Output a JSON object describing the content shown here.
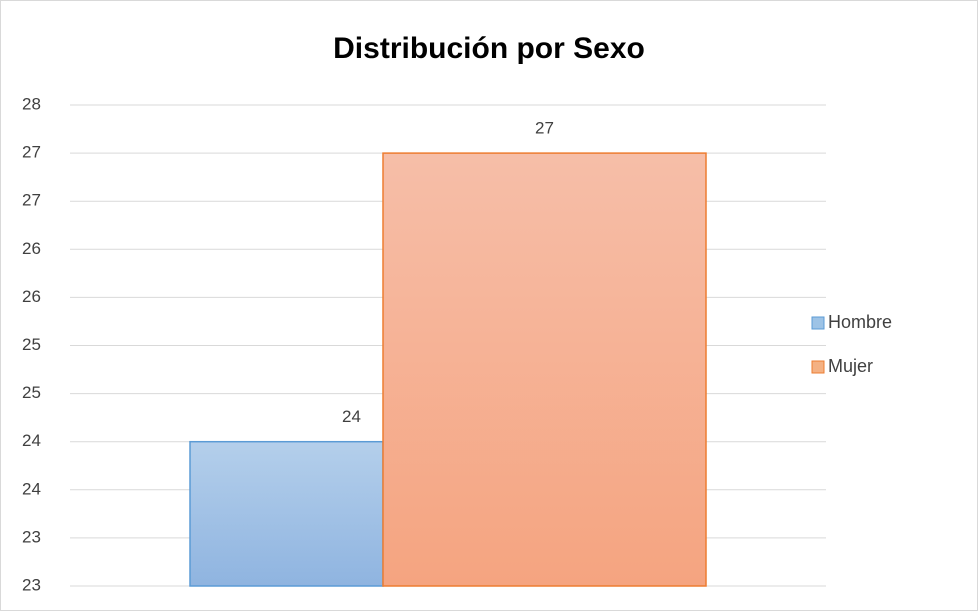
{
  "chart_data": {
    "type": "bar",
    "title": "Distribución por Sexo",
    "series": [
      {
        "name": "Hombre",
        "color": "#9dc3e6",
        "border": "#5b9bd5",
        "values": [
          24.3
        ],
        "value_labels": [
          "24"
        ]
      },
      {
        "name": "Mujer",
        "color": "#f4b183",
        "border": "#ed7d31",
        "values": [
          27.3
        ],
        "value_labels": [
          "27"
        ]
      }
    ],
    "ylim": [
      22.8,
      27.8
    ],
    "yticks": [
      {
        "value": 22.8,
        "label": "23"
      },
      {
        "value": 23.3,
        "label": "23"
      },
      {
        "value": 23.8,
        "label": "24"
      },
      {
        "value": 24.3,
        "label": "24"
      },
      {
        "value": 24.8,
        "label": "25"
      },
      {
        "value": 25.3,
        "label": "25"
      },
      {
        "value": 25.8,
        "label": "26"
      },
      {
        "value": 26.3,
        "label": "26"
      },
      {
        "value": 26.8,
        "label": "27"
      },
      {
        "value": 27.3,
        "label": "27"
      },
      {
        "value": 27.8,
        "label": "28"
      }
    ],
    "grid": true,
    "legend": "right"
  }
}
